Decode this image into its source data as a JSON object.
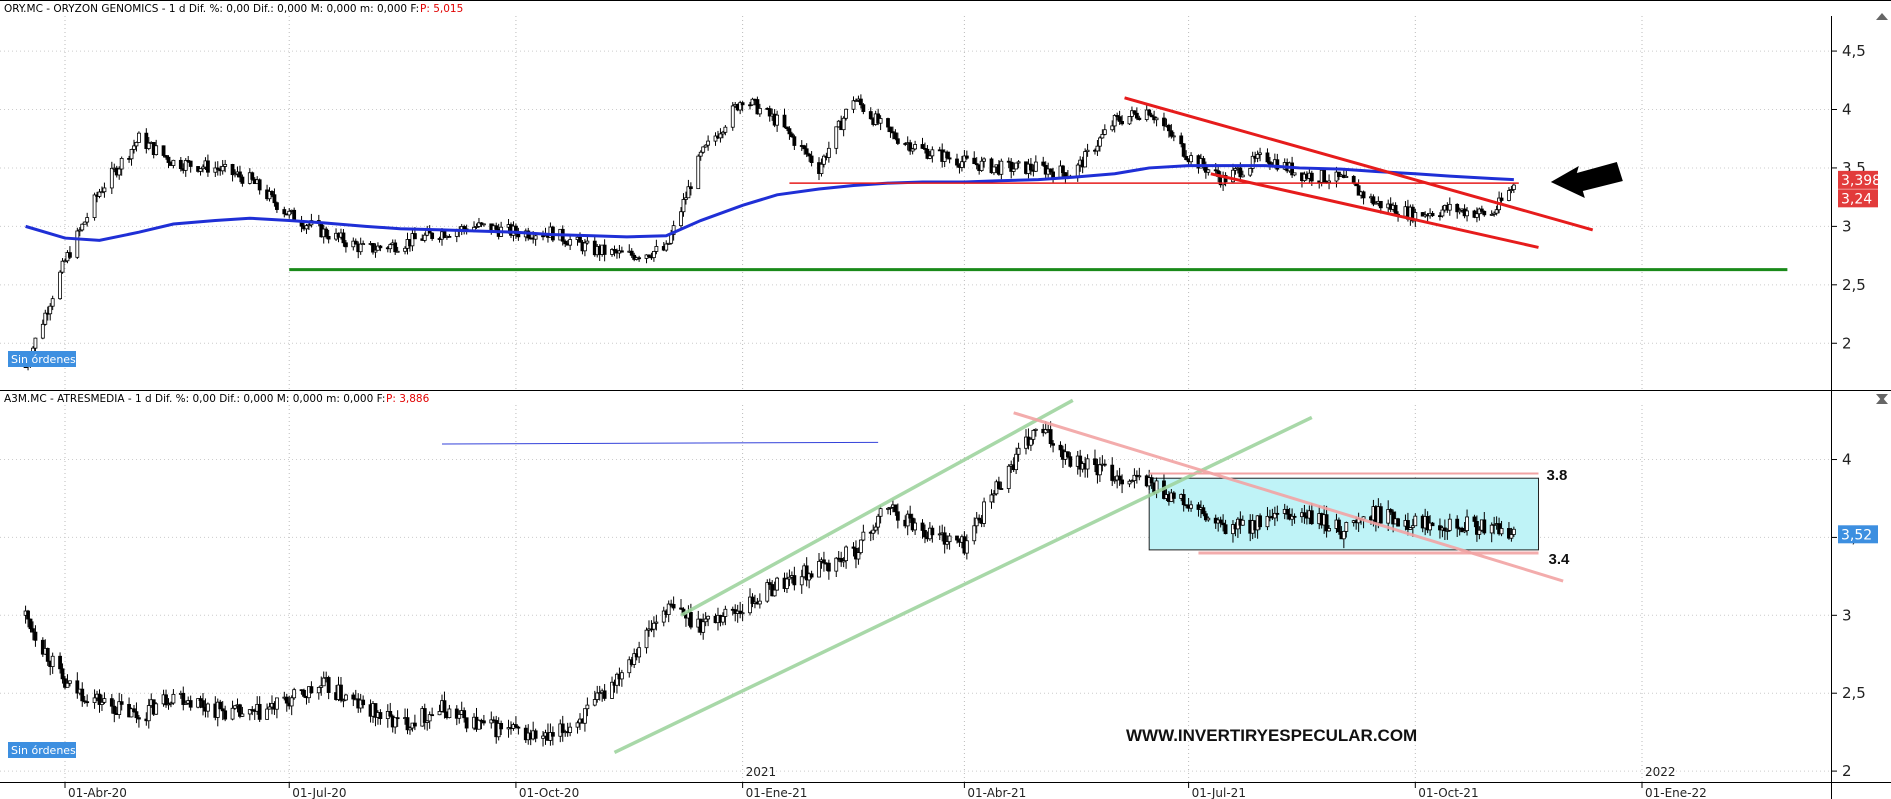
{
  "colors": {
    "candle": "#000000",
    "ma_line": "#1f2fd6",
    "support_line": "#1a8a1a",
    "red_channel": "#e61c1c",
    "green_channel": "#9fd49f",
    "pink_trend": "#f2a3a3",
    "range_fill": "#bff3f7",
    "range_border": "#222222",
    "label_red": "#e23b3b",
    "label_blue": "#3d8fe0",
    "badge_blue": "#3d8fe0"
  },
  "top_panel": {
    "header": {
      "text": "ORY.MC - ORYZON GENOMICS -  1 d  Dif. %: 0,00  Dif.: 0,000  M: 0,000  m: 0,000  F:",
      "price": "P: 5,015"
    },
    "orders_badge": "Sin órdenes",
    "price_labels": [
      "3,398",
      "3,24"
    ],
    "annotation_arrow_icon": "black-arrow-left-icon"
  },
  "bottom_panel": {
    "header": {
      "text": "A3M.MC - ATRESMEDIA -  1 d  Dif. %: 0,00  Dif.: 0,000  M: 0,000  m: 0,000  F:",
      "price": "P: 3,886"
    },
    "orders_badge": "Sin órdenes",
    "price_label": "3,52",
    "range_labels": {
      "upper": "3.8",
      "lower": "3.4"
    },
    "watermark": "WWW.INVERTIRYESPECULAR.COM"
  },
  "x_axis": {
    "month_labels": [
      "01-Abr-20",
      "01-Jul-20",
      "01-Oct-20",
      "01-Ene-21",
      "01-Abr-21",
      "01-Jul-21",
      "01-Oct-21",
      "01-Ene-22"
    ],
    "year_labels": [
      "2021",
      "2022"
    ]
  },
  "chart_data": [
    {
      "type": "candlestick",
      "title": "ORY.MC - ORYZON GENOMICS",
      "y_ticks": [
        "4,5",
        "4",
        "3,5",
        "3",
        "2,5",
        "2"
      ],
      "ylim": [
        1.6,
        4.8
      ],
      "x": [
        "2020-03-16",
        "2020-04-01",
        "2020-04-15",
        "2020-05-01",
        "2020-05-15",
        "2020-06-01",
        "2020-06-15",
        "2020-07-01",
        "2020-07-15",
        "2020-08-01",
        "2020-08-15",
        "2020-09-01",
        "2020-09-15",
        "2020-10-01",
        "2020-10-15",
        "2020-11-01",
        "2020-11-15",
        "2020-12-01",
        "2020-12-15",
        "2021-01-01",
        "2021-01-15",
        "2021-02-01",
        "2021-02-15",
        "2021-03-01",
        "2021-03-15",
        "2021-04-01",
        "2021-04-15",
        "2021-05-01",
        "2021-05-15",
        "2021-06-01",
        "2021-06-15",
        "2021-07-01",
        "2021-07-15",
        "2021-08-01",
        "2021-08-15",
        "2021-09-01",
        "2021-09-15",
        "2021-10-01",
        "2021-10-15",
        "2021-11-01",
        "2021-11-10"
      ],
      "close": [
        1.8,
        2.7,
        3.3,
        3.75,
        3.55,
        3.5,
        3.4,
        3.1,
        2.95,
        2.8,
        2.85,
        2.95,
        3.0,
        2.95,
        2.95,
        2.8,
        2.75,
        2.8,
        3.6,
        4.1,
        3.9,
        3.5,
        4.1,
        3.8,
        3.65,
        3.55,
        3.5,
        3.5,
        3.45,
        3.9,
        4.0,
        3.6,
        3.4,
        3.6,
        3.45,
        3.4,
        3.2,
        3.1,
        3.15,
        3.1,
        3.35
      ],
      "series": [
        {
          "name": "",
          "kind": "moving-average",
          "values": [
            3.0,
            2.9,
            2.88,
            2.95,
            3.02,
            3.05,
            3.07,
            3.05,
            3.03,
            3.0,
            2.98,
            2.97,
            2.96,
            2.95,
            2.93,
            2.92,
            2.91,
            2.92,
            3.05,
            3.18,
            3.27,
            3.32,
            3.35,
            3.37,
            3.38,
            3.38,
            3.39,
            3.4,
            3.42,
            3.45,
            3.5,
            3.52,
            3.52,
            3.52,
            3.5,
            3.49,
            3.47,
            3.45,
            3.43,
            3.41,
            3.4
          ]
        }
      ],
      "lines": [
        {
          "kind": "support",
          "from": [
            "2020-07-01",
            2.63
          ],
          "to": [
            "2022-03-01",
            2.63
          ]
        },
        {
          "kind": "resistance-top",
          "from": [
            "2021-06-05",
            4.1
          ],
          "to": [
            "2021-12-12",
            2.97
          ]
        },
        {
          "kind": "channel-bottom",
          "from": [
            "2021-07-10",
            3.45
          ],
          "to": [
            "2021-11-20",
            2.82
          ]
        },
        {
          "kind": "horizontal",
          "from": [
            "2021-01-20",
            3.37
          ],
          "to": [
            "2021-11-12",
            3.37
          ]
        }
      ]
    },
    {
      "type": "candlestick",
      "title": "A3M.MC - ATRESMEDIA",
      "y_ticks": [
        "4",
        "3,5",
        "3",
        "2,5",
        "2"
      ],
      "ylim": [
        1.93,
        4.35
      ],
      "x": [
        "2020-03-16",
        "2020-04-01",
        "2020-04-15",
        "2020-05-01",
        "2020-05-15",
        "2020-06-01",
        "2020-06-15",
        "2020-07-01",
        "2020-07-15",
        "2020-08-01",
        "2020-08-15",
        "2020-09-01",
        "2020-09-15",
        "2020-10-01",
        "2020-10-15",
        "2020-11-01",
        "2020-11-15",
        "2020-12-01",
        "2020-12-15",
        "2021-01-01",
        "2021-01-15",
        "2021-02-01",
        "2021-02-15",
        "2021-03-01",
        "2021-03-15",
        "2021-04-01",
        "2021-04-15",
        "2021-05-01",
        "2021-05-15",
        "2021-06-01",
        "2021-06-15",
        "2021-07-01",
        "2021-07-15",
        "2021-08-01",
        "2021-08-15",
        "2021-09-01",
        "2021-09-15",
        "2021-10-01",
        "2021-10-15",
        "2021-11-01",
        "2021-11-10"
      ],
      "close": [
        3.0,
        2.55,
        2.45,
        2.35,
        2.5,
        2.4,
        2.35,
        2.45,
        2.55,
        2.4,
        2.3,
        2.4,
        2.3,
        2.25,
        2.2,
        2.4,
        2.7,
        3.05,
        2.95,
        3.05,
        3.2,
        3.3,
        3.4,
        3.7,
        3.55,
        3.45,
        3.85,
        4.2,
        4.0,
        3.9,
        3.85,
        3.7,
        3.55,
        3.6,
        3.65,
        3.55,
        3.65,
        3.6,
        3.6,
        3.55,
        3.52
      ],
      "lines": [
        {
          "kind": "channel-top",
          "from": [
            "2020-12-07",
            3.0
          ],
          "to": [
            "2021-05-15",
            4.38
          ]
        },
        {
          "kind": "channel-bottom",
          "from": [
            "2020-11-10",
            2.12
          ],
          "to": [
            "2021-08-20",
            4.27
          ]
        },
        {
          "kind": "downtrend",
          "from": [
            "2021-04-21",
            4.3
          ],
          "to": [
            "2021-11-30",
            3.22
          ]
        },
        {
          "kind": "ray",
          "from": [
            "2020-09-01",
            4.1
          ],
          "to": [
            "2021-02-25",
            4.11
          ]
        },
        {
          "kind": "range-support",
          "from": [
            "2021-07-05",
            3.4
          ],
          "to": [
            "2021-11-20",
            3.4
          ]
        }
      ],
      "range_box": {
        "from": "2021-06-15",
        "to": "2021-11-20",
        "low": 3.42,
        "high": 3.88,
        "labels": [
          "3.8",
          "3.4"
        ]
      }
    }
  ]
}
